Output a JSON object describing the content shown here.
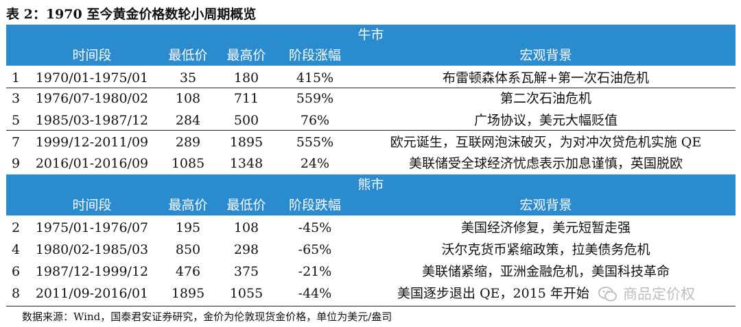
{
  "title": "表 2：1970 至今黄金价格数轮小周期概览",
  "bull": {
    "label": "牛市",
    "headers": {
      "period": "时间段",
      "col_a": "最低价",
      "col_b": "最高价",
      "change": "阶段涨幅",
      "background": "宏观背景"
    },
    "rows": [
      {
        "idx": "1",
        "period": "1970/01-1975/01",
        "a": "35",
        "b": "180",
        "change": "415%",
        "background": "布雷顿森体系瓦解+第一次石油危机"
      },
      {
        "idx": "3",
        "period": "1976/07-1980/02",
        "a": "108",
        "b": "711",
        "change": "559%",
        "background": "第二次石油危机"
      },
      {
        "idx": "5",
        "period": "1985/03-1987/12",
        "a": "284",
        "b": "500",
        "change": "76%",
        "background": "广场协议，美元大幅贬值"
      },
      {
        "idx": "7",
        "period": "1999/12-2011/09",
        "a": "289",
        "b": "1895",
        "change": "555%",
        "background": "欧元诞生，互联网泡沫破灭，为对冲次贷危机实施 QE"
      },
      {
        "idx": "9",
        "period": "2016/01-2016/09",
        "a": "1085",
        "b": "1348",
        "change": "24%",
        "background": "美联储受全球经济忧虑表示加息谨慎，英国脱欧"
      }
    ]
  },
  "bear": {
    "label": "熊市",
    "headers": {
      "period": "时间段",
      "col_a": "最高价",
      "col_b": "最低价",
      "change": "阶段跌幅",
      "background": "宏观背景"
    },
    "rows": [
      {
        "idx": "2",
        "period": "1975/01-1976/07",
        "a": "195",
        "b": "108",
        "change": "-45%",
        "background": "美国经济修复，美元短暂走强"
      },
      {
        "idx": "4",
        "period": "1980/02-1985/03",
        "a": "850",
        "b": "298",
        "change": "-65%",
        "background": "沃尔克货币紧缩政策，拉美债务危机"
      },
      {
        "idx": "6",
        "period": "1987/12-1999/12",
        "a": "476",
        "b": "375",
        "change": "-21%",
        "background": "美联储紧缩，亚洲金融危机，美国科技革命"
      },
      {
        "idx": "8",
        "period": "2011/09-2016/01",
        "a": "1895",
        "b": "1055",
        "change": "-44%",
        "background": "美国逐步退出 QE，2015 年开始"
      }
    ]
  },
  "source_note": "数据来源：Wind，国泰君安证券研究，金价为伦敦现货金价格，单位为美元/盎司",
  "watermark": {
    "text": "商品定价权",
    "icon": "wechat-icon"
  },
  "colors": {
    "band": "#2a8bce",
    "band_text": "#ffffff"
  }
}
